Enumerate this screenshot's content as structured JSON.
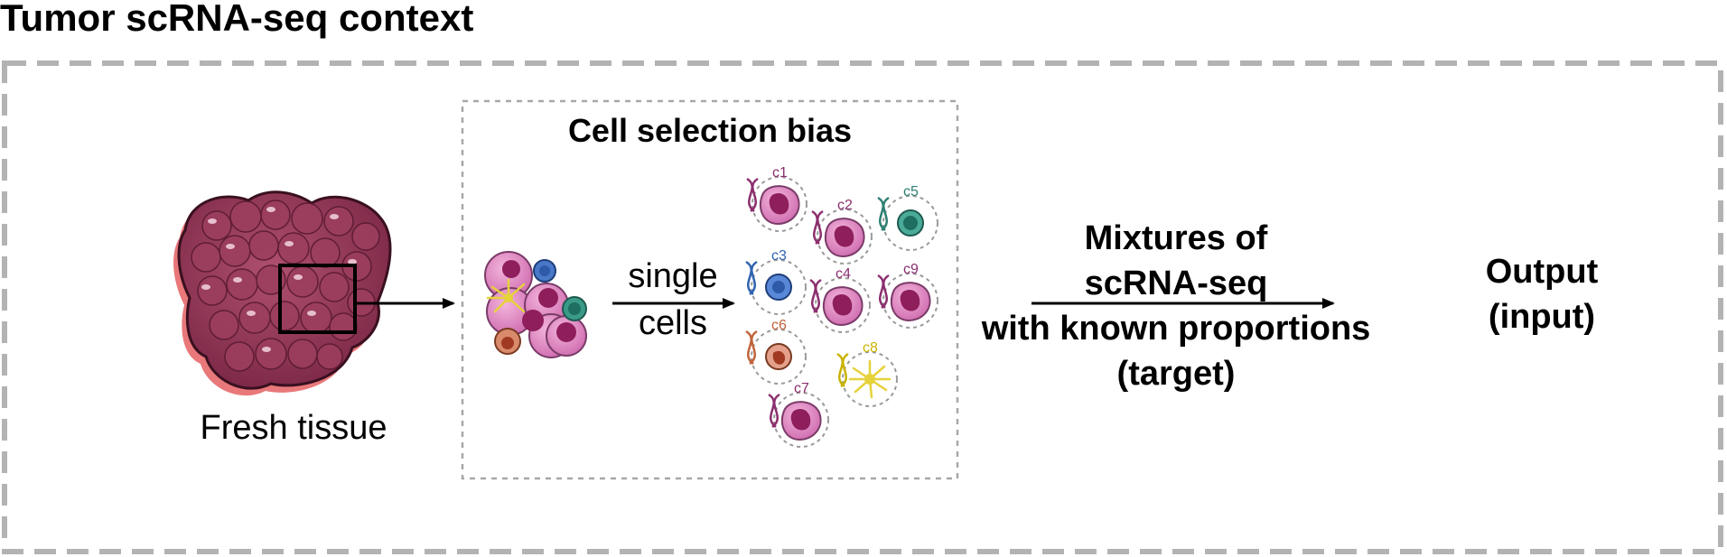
{
  "title": "Tumor scRNA-seq context",
  "tissue": {
    "label": "Fresh tissue"
  },
  "selection_box": {
    "title": "Cell selection bias"
  },
  "arrow_label": {
    "line1": "single",
    "line2": "cells"
  },
  "cells": [
    {
      "id": "c1",
      "color": "#8B2E6E"
    },
    {
      "id": "c2",
      "color": "#8B2E6E"
    },
    {
      "id": "c3",
      "color": "#2E63B0"
    },
    {
      "id": "c4",
      "color": "#8B2E6E"
    },
    {
      "id": "c5",
      "color": "#2E7F73"
    },
    {
      "id": "c6",
      "color": "#C0633A"
    },
    {
      "id": "c7",
      "color": "#8B2E6E"
    },
    {
      "id": "c8",
      "color": "#C9B300"
    },
    {
      "id": "c9",
      "color": "#8B2E6E"
    }
  ],
  "mixtures": {
    "line1": "Mixtures of",
    "line2": "scRNA-seq",
    "line3": "with known proportions",
    "line4": "(target)",
    "color": "#3A63A8"
  },
  "output": {
    "line1": "Output",
    "line2": "(input)",
    "color": "#A0452A"
  },
  "colors": {
    "dash_border": "#B3B3B3",
    "inner_dash": "#A8A8A8",
    "tissue": "#8E3450",
    "tissue_shadow": "#E8787A",
    "cell_pink": "#D978B8",
    "nucleus": "#8E1E5C"
  }
}
